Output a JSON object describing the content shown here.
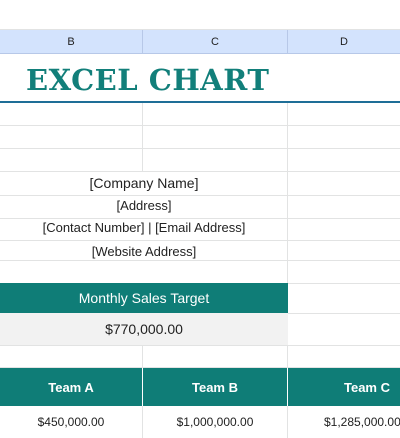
{
  "columns": [
    "B",
    "C",
    "D"
  ],
  "title": "EXCEL CHART",
  "company": {
    "name": "[Company Name]",
    "address": "[Address]",
    "contact": "[Contact Number] | [Email Address]",
    "website": "[Website Address]"
  },
  "sales_target": {
    "label": "Monthly Sales Target",
    "value": "$770,000.00"
  },
  "teams": [
    {
      "name": "Team A",
      "value": "$450,000.00"
    },
    {
      "name": "Team B",
      "value": "$1,000,000.00"
    },
    {
      "name": "Team C",
      "value": "$1,285,000.00"
    }
  ]
}
